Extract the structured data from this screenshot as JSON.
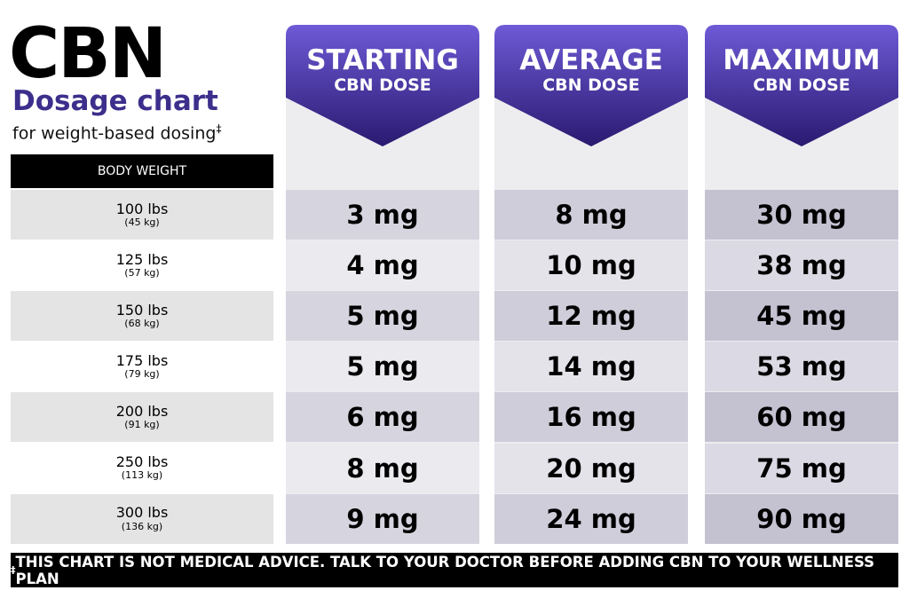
{
  "header": {
    "title": "CBN",
    "subtitle": "Dosage chart",
    "note": "for weight-based dosing",
    "note_mark": "‡"
  },
  "table": {
    "weight_header": "BODY WEIGHT",
    "columns": [
      {
        "title": "STARTING",
        "subtitle": "CBN DOSE"
      },
      {
        "title": "AVERAGE",
        "subtitle": "CBN DOSE"
      },
      {
        "title": "MAXIMUM",
        "subtitle": "CBN DOSE"
      }
    ],
    "rows": [
      {
        "weight": "100 lbs",
        "metric": "(45 kg)",
        "doses": [
          "3 mg",
          "8 mg",
          "30 mg"
        ]
      },
      {
        "weight": "125 lbs",
        "metric": "(57 kg)",
        "doses": [
          "4 mg",
          "10 mg",
          "38 mg"
        ]
      },
      {
        "weight": "150 lbs",
        "metric": "(68 kg)",
        "doses": [
          "5 mg",
          "12 mg",
          "45 mg"
        ]
      },
      {
        "weight": "175 lbs",
        "metric": "(79 kg)",
        "doses": [
          "5 mg",
          "14 mg",
          "53 mg"
        ]
      },
      {
        "weight": "200 lbs",
        "metric": "(91 kg)",
        "doses": [
          "6 mg",
          "16 mg",
          "60 mg"
        ]
      },
      {
        "weight": "250 lbs",
        "metric": "(113 kg)",
        "doses": [
          "8 mg",
          "20 mg",
          "75 mg"
        ]
      },
      {
        "weight": "300 lbs",
        "metric": "(136 kg)",
        "doses": [
          "9 mg",
          "24 mg",
          "90 mg"
        ]
      }
    ]
  },
  "footer": {
    "mark": "‡",
    "text": "THIS CHART IS NOT MEDICAL ADVICE. TALK TO YOUR DOCTOR BEFORE ADDING CBN TO YOUR WELLNESS PLAN"
  }
}
